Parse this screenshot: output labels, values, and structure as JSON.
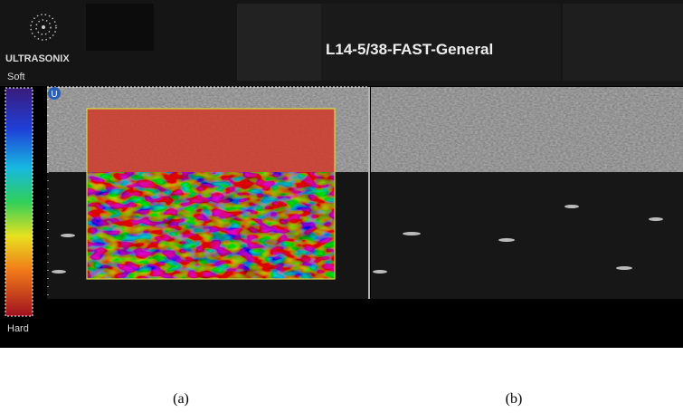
{
  "header": {
    "logo": "ULTRASONIX",
    "preset": "L14-5/38-FAST-General"
  },
  "scale": {
    "top": "Soft",
    "bottom": "Hard"
  },
  "marker": "U",
  "captions": [
    "(a)",
    "(b)"
  ]
}
